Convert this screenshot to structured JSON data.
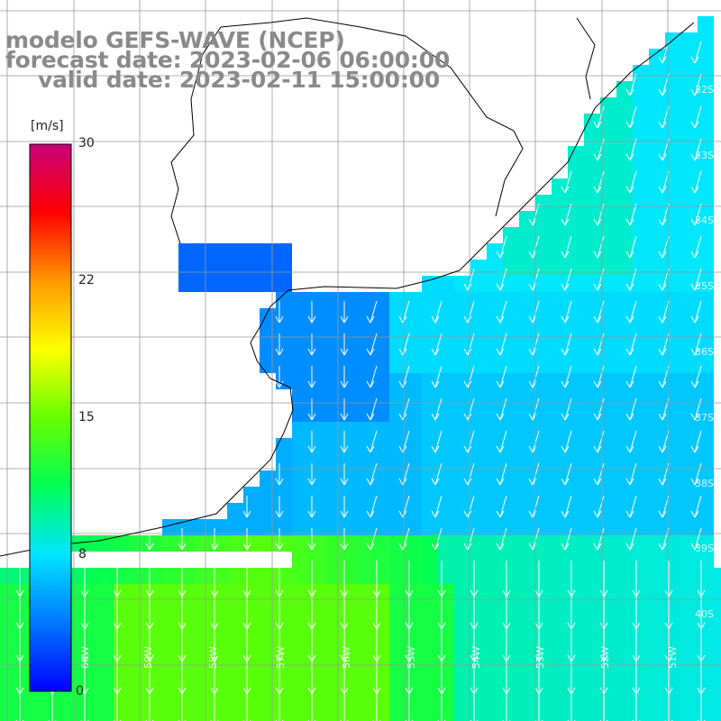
{
  "title": {
    "model": "modelo GEFS-WAVE (NCEP)",
    "forecast": "forecast date: 2023-02-06 06:00:00",
    "valid": "valid date: 2023-02-11 15:00:00"
  },
  "colorbar": {
    "unit": "[m/s]",
    "min": 0,
    "max": 30,
    "ticks": [
      "30",
      "22",
      "15",
      "8",
      "0"
    ],
    "tick_values": [
      30,
      22,
      15,
      8,
      0
    ],
    "colors": [
      "#0000ff",
      "#0077ff",
      "#00e5ff",
      "#00ff55",
      "#66ff00",
      "#ffff00",
      "#ff9900",
      "#ff0000",
      "#c8007a"
    ]
  },
  "map": {
    "parameter": "wind speed and direction",
    "land_color": "#ffffff",
    "grid_color": "#999999",
    "lat_labels": [
      "32S",
      "33S",
      "34S",
      "35S",
      "36S",
      "37S",
      "38S",
      "39S",
      "40S"
    ],
    "lon_labels": [
      "60W",
      "59W",
      "58W",
      "57W",
      "56W",
      "55W",
      "54W",
      "53W",
      "52W",
      "51W"
    ],
    "wind_direction": "southward"
  }
}
